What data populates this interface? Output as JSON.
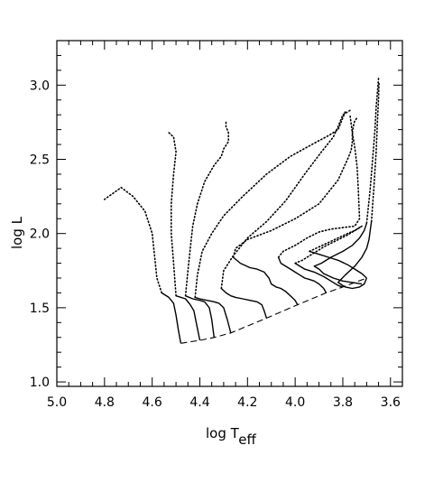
{
  "chart_data": {
    "type": "line",
    "title": "",
    "xlabel": {
      "main": "log T",
      "sub": "eff"
    },
    "ylabel": "log L",
    "xlim": [
      5.0,
      3.55
    ],
    "ylim": [
      0.97,
      3.3
    ],
    "xticks": [
      "5.0",
      "4.8",
      "4.6",
      "4.4",
      "4.2",
      "4.0",
      "3.8",
      "3.6"
    ],
    "yticks": [
      "1.0",
      "1.5",
      "2.0",
      "2.5",
      "3.0"
    ],
    "grid": false,
    "legend": "none",
    "zams": {
      "name": "",
      "style": "dashed",
      "x": [
        4.48,
        4.4,
        4.34,
        4.27,
        4.12,
        3.99,
        3.87,
        3.8,
        3.7
      ],
      "y": [
        1.26,
        1.28,
        1.3,
        1.33,
        1.43,
        1.52,
        1.6,
        1.64,
        1.7
      ]
    },
    "tracks": [
      {
        "solid": {
          "x": [
            4.48,
            4.49,
            4.5,
            4.51,
            4.53,
            4.56
          ],
          "y": [
            1.26,
            1.35,
            1.45,
            1.53,
            1.57,
            1.6
          ]
        },
        "dotted": {
          "x": [
            4.56,
            4.58,
            4.59,
            4.6,
            4.63,
            4.68,
            4.73,
            4.8
          ],
          "y": [
            1.6,
            1.7,
            1.85,
            2.0,
            2.15,
            2.25,
            2.31,
            2.23
          ]
        }
      },
      {
        "solid": {
          "x": [
            4.4,
            4.415,
            4.425,
            4.44,
            4.46,
            4.5
          ],
          "y": [
            1.28,
            1.4,
            1.48,
            1.52,
            1.56,
            1.58
          ]
        },
        "dotted": {
          "x": [
            4.5,
            4.51,
            4.52,
            4.52,
            4.51,
            4.5,
            4.51,
            4.53
          ],
          "y": [
            1.58,
            1.8,
            2.0,
            2.2,
            2.4,
            2.55,
            2.65,
            2.68
          ]
        }
      },
      {
        "solid": {
          "x": [
            4.34,
            4.35,
            4.36,
            4.38,
            4.4,
            4.43,
            4.46
          ],
          "y": [
            1.3,
            1.42,
            1.5,
            1.54,
            1.55,
            1.56,
            1.58
          ]
        },
        "dotted": {
          "x": [
            4.46,
            4.45,
            4.44,
            4.43,
            4.41,
            4.38,
            4.34,
            4.31,
            4.3,
            4.28,
            4.28,
            4.29,
            4.29
          ],
          "y": [
            1.58,
            1.75,
            1.9,
            2.05,
            2.2,
            2.35,
            2.46,
            2.52,
            2.57,
            2.62,
            2.68,
            2.72,
            2.75
          ]
        }
      },
      {
        "solid": {
          "x": [
            4.27,
            4.285,
            4.3,
            4.32,
            4.34,
            4.37,
            4.4,
            4.42
          ],
          "y": [
            1.33,
            1.42,
            1.5,
            1.53,
            1.54,
            1.55,
            1.56,
            1.57
          ]
        },
        "dotted": {
          "x": [
            4.42,
            4.41,
            4.39,
            4.35,
            4.3,
            4.22,
            4.12,
            4.02,
            3.93,
            3.86,
            3.82,
            3.8,
            3.79
          ],
          "y": [
            1.57,
            1.72,
            1.88,
            2.0,
            2.12,
            2.25,
            2.4,
            2.52,
            2.6,
            2.66,
            2.7,
            2.78,
            2.82
          ]
        }
      },
      {
        "solid": {
          "x": [
            4.12,
            4.13,
            4.14,
            4.16,
            4.19,
            4.22,
            4.25,
            4.27,
            4.29,
            4.31
          ],
          "y": [
            1.43,
            1.48,
            1.52,
            1.54,
            1.55,
            1.56,
            1.57,
            1.58,
            1.6,
            1.63
          ]
        },
        "dotted": {
          "x": [
            4.31,
            4.3,
            4.26,
            4.2,
            4.12,
            4.04,
            3.96,
            3.89,
            3.84,
            3.82,
            3.8,
            3.77
          ],
          "y": [
            1.63,
            1.75,
            1.85,
            1.97,
            2.08,
            2.22,
            2.4,
            2.55,
            2.65,
            2.72,
            2.8,
            2.83
          ]
        }
      },
      {
        "solid": {
          "x": [
            3.99,
            4.0,
            4.02,
            4.04,
            4.06,
            4.08,
            4.1,
            4.11,
            4.13,
            4.16,
            4.19,
            4.23,
            4.26
          ],
          "y": [
            1.52,
            1.55,
            1.58,
            1.61,
            1.63,
            1.64,
            1.66,
            1.7,
            1.74,
            1.76,
            1.77,
            1.8,
            1.84
          ]
        },
        "dotted": {
          "x": [
            4.26,
            4.25,
            4.2,
            4.1,
            4.0,
            3.9,
            3.82,
            3.78,
            3.765,
            3.76,
            3.76,
            3.755,
            3.75,
            3.74
          ],
          "y": [
            1.84,
            1.9,
            1.96,
            2.02,
            2.1,
            2.2,
            2.36,
            2.5,
            2.56,
            2.62,
            2.68,
            2.73,
            2.76,
            2.78
          ]
        }
      },
      {
        "solid": {
          "x": [
            3.87,
            3.88,
            3.9,
            3.92,
            3.94,
            3.96,
            3.98,
            4.0,
            4.02,
            4.04,
            4.06,
            4.07
          ],
          "y": [
            1.6,
            1.63,
            1.66,
            1.68,
            1.69,
            1.7,
            1.72,
            1.74,
            1.76,
            1.78,
            1.8,
            1.84
          ]
        },
        "dotted": {
          "x": [
            4.07,
            4.05,
            4.0,
            3.95,
            3.9,
            3.85,
            3.8,
            3.75,
            3.73,
            3.735,
            3.74,
            3.75,
            3.76,
            3.77
          ],
          "y": [
            1.84,
            1.88,
            1.92,
            1.97,
            2.01,
            2.03,
            2.04,
            2.05,
            2.1,
            2.3,
            2.45,
            2.58,
            2.68,
            2.8
          ]
        }
      },
      {
        "solid": {
          "x": [
            3.8,
            3.82,
            3.85,
            3.88,
            3.92,
            3.96,
            3.98,
            4.0
          ],
          "y": [
            1.64,
            1.65,
            1.68,
            1.71,
            1.74,
            1.76,
            1.78,
            1.8
          ]
        },
        "dotted": {
          "x": [
            4.0,
            3.97,
            3.93,
            3.88,
            3.83,
            3.78,
            3.74,
            3.72
          ],
          "y": [
            1.8,
            1.82,
            1.86,
            1.91,
            1.95,
            1.99,
            2.03,
            2.05
          ]
        }
      },
      {
        "solid": {
          "x": [
            3.7,
            3.72,
            3.75,
            3.78,
            3.82,
            3.86,
            3.9,
            3.94
          ],
          "y": [
            1.7,
            1.73,
            1.76,
            1.79,
            1.82,
            1.84,
            1.86,
            1.88
          ]
        },
        "dotted": {
          "x": [
            3.94,
            3.9,
            3.86,
            3.82,
            3.78,
            3.75,
            3.73,
            3.72
          ],
          "y": [
            1.88,
            1.91,
            1.94,
            1.97,
            2.0,
            2.02,
            2.04,
            2.05
          ]
        }
      },
      {
        "solid": {
          "x": [
            3.72,
            3.76,
            3.8,
            3.84,
            3.88,
            3.9,
            3.92,
            3.89,
            3.85,
            3.8,
            3.76,
            3.73,
            3.71,
            3.7
          ],
          "y": [
            1.66,
            1.67,
            1.68,
            1.7,
            1.73,
            1.76,
            1.78,
            1.8,
            1.84,
            1.88,
            1.92,
            1.97,
            2.02,
            2.07
          ]
        },
        "dotted": {
          "x": [
            3.7,
            3.685,
            3.675,
            3.665,
            3.66,
            3.655,
            3.65
          ],
          "y": [
            2.07,
            2.3,
            2.5,
            2.7,
            2.85,
            2.95,
            3.05
          ]
        }
      },
      {
        "solid": {
          "x": [
            3.7,
            3.71,
            3.73,
            3.76,
            3.79,
            3.82,
            3.79,
            3.75,
            3.72,
            3.7,
            3.69,
            3.685,
            3.68
          ],
          "y": [
            1.7,
            1.66,
            1.64,
            1.63,
            1.64,
            1.67,
            1.72,
            1.78,
            1.84,
            1.9,
            1.96,
            2.02,
            2.08
          ]
        },
        "dotted": {
          "x": [
            3.68,
            3.67,
            3.66,
            3.655,
            3.65,
            3.648
          ],
          "y": [
            2.08,
            2.3,
            2.55,
            2.75,
            2.92,
            3.02
          ]
        }
      }
    ]
  }
}
